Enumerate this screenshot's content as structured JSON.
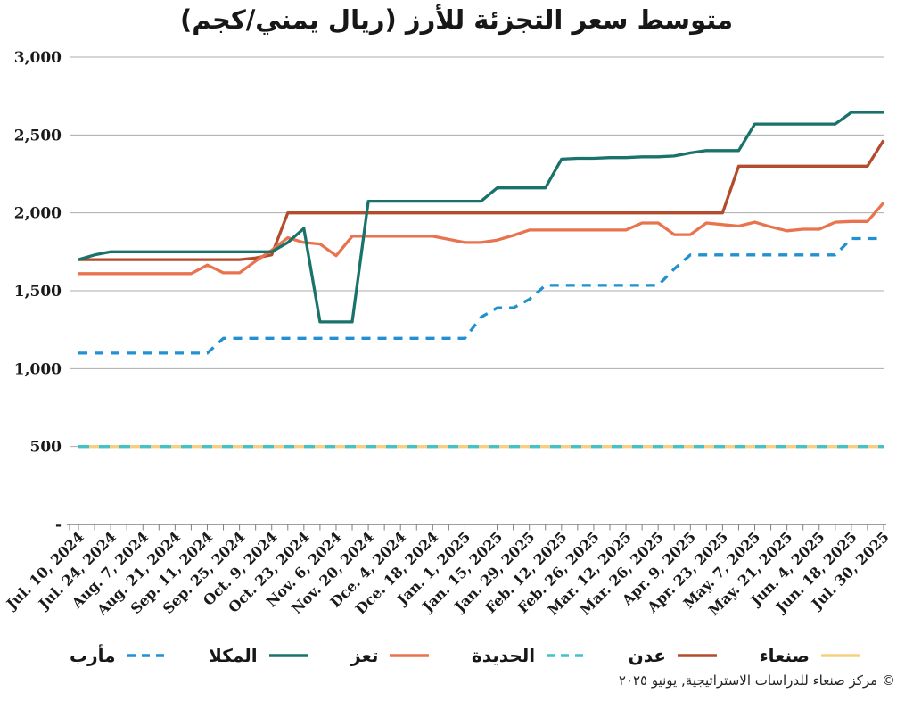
{
  "title": "متوسط سعر التجزئة للأرز (ريال يمني/كجم)",
  "footer": {
    "copyright": "© مركز صنعاء للدراسات الاستراتيجية, يونيو ٢٠٢٥"
  },
  "chart_data": {
    "type": "line",
    "title": "متوسط سعر التجزئة للأرز (ريال يمني/كجم)",
    "ylim": [
      0,
      3000
    ],
    "grid": true,
    "legend_position": "bottom",
    "x_label_rotation": -45,
    "minor_ticks_between_labels": 1,
    "y_ticks": [
      0,
      500,
      1000,
      1500,
      2000,
      2500,
      3000
    ],
    "y_tick_labels": [
      "-",
      "500",
      "1,000",
      "1,500",
      "2,000",
      "2,500",
      "3,000"
    ],
    "x_tick_labels": [
      "Jul. 10, 2024",
      "Jul. 24, 2024",
      "Aug. 7, 2024",
      "Aug. 21, 2024",
      "Sep. 11, 2024",
      "Sep. 25, 2024",
      "Oct. 9, 2024",
      "Oct. 23, 2024",
      "Nov. 6, 2024",
      "Nov. 20, 2024",
      "Dce. 4, 2024",
      "Dce. 18, 2024",
      "Jan. 1, 2025",
      "Jan. 15, 2025",
      "Jan. 29, 2025",
      "Feb. 12, 2025",
      "Feb. 26, 2025",
      "Mar. 12, 2025",
      "Mar. 26, 2025",
      "Apr. 9, 2025",
      "Apr. 23, 2025",
      "May. 7, 2025",
      "May. 21, 2025",
      "Jun. 4, 2025",
      "Jun. 18, 2025",
      "Jul. 30, 2025"
    ],
    "draw_order": [
      5,
      3,
      0,
      4,
      2,
      1
    ],
    "series": [
      {
        "key": "marib",
        "name": "مأرب",
        "color": "#2191d1",
        "dash": true,
        "values": [
          1100,
          1100,
          1100,
          1100,
          1100,
          1100,
          1100,
          1100,
          1100,
          1195,
          1195,
          1195,
          1195,
          1195,
          1195,
          1195,
          1195,
          1195,
          1195,
          1195,
          1195,
          1195,
          1195,
          1195,
          1195,
          1330,
          1390,
          1390,
          1445,
          1535,
          1535,
          1535,
          1535,
          1535,
          1535,
          1535,
          1535,
          1640,
          1730,
          1730,
          1730,
          1730,
          1730,
          1730,
          1730,
          1730,
          1730,
          1730,
          1835,
          1835,
          1835
        ]
      },
      {
        "key": "mukalla",
        "name": "المكلا",
        "color": "#19736b",
        "dash": false,
        "values": [
          1700,
          1730,
          1750,
          1750,
          1750,
          1750,
          1750,
          1750,
          1750,
          1750,
          1750,
          1750,
          1750,
          1810,
          1900,
          1300,
          1300,
          1300,
          2075,
          2075,
          2075,
          2075,
          2075,
          2075,
          2075,
          2075,
          2160,
          2160,
          2160,
          2160,
          2345,
          2350,
          2350,
          2355,
          2355,
          2360,
          2360,
          2365,
          2385,
          2400,
          2400,
          2400,
          2570,
          2570,
          2570,
          2570,
          2570,
          2570,
          2645,
          2645,
          2645
        ]
      },
      {
        "key": "taiz",
        "name": "تعز",
        "color": "#e8734d",
        "dash": false,
        "values": [
          1610,
          1610,
          1610,
          1610,
          1610,
          1610,
          1610,
          1610,
          1665,
          1615,
          1615,
          1690,
          1760,
          1840,
          1810,
          1800,
          1725,
          1850,
          1850,
          1850,
          1850,
          1850,
          1850,
          1830,
          1810,
          1810,
          1825,
          1855,
          1890,
          1890,
          1890,
          1890,
          1890,
          1890,
          1890,
          1935,
          1935,
          1860,
          1860,
          1935,
          1925,
          1915,
          1940,
          1910,
          1885,
          1895,
          1895,
          1940,
          1945,
          1945,
          2065
        ]
      },
      {
        "key": "hodeidah",
        "name": "الحديدة",
        "color": "#44c2c6",
        "dash": true,
        "values": [
          500,
          500,
          500,
          500,
          500,
          500,
          500,
          500,
          500,
          500,
          500,
          500,
          500,
          500,
          500,
          500,
          500,
          500,
          500,
          500,
          500,
          500,
          500,
          500,
          500,
          500,
          500,
          500,
          500,
          500,
          500,
          500,
          500,
          500,
          500,
          500,
          500,
          500,
          500,
          500,
          500,
          500,
          500,
          500,
          500,
          500,
          500,
          500,
          500,
          500,
          500
        ]
      },
      {
        "key": "aden",
        "name": "عدن",
        "color": "#b34b2d",
        "dash": false,
        "values": [
          1700,
          1700,
          1700,
          1700,
          1700,
          1700,
          1700,
          1700,
          1700,
          1700,
          1700,
          1710,
          1730,
          2000,
          2000,
          2000,
          2000,
          2000,
          2000,
          2000,
          2000,
          2000,
          2000,
          2000,
          2000,
          2000,
          2000,
          2000,
          2000,
          2000,
          2000,
          2000,
          2000,
          2000,
          2000,
          2000,
          2000,
          2000,
          2000,
          2000,
          2000,
          2300,
          2300,
          2300,
          2300,
          2300,
          2300,
          2300,
          2300,
          2300,
          2465
        ]
      },
      {
        "key": "sanaa",
        "name": "صنعاء",
        "color": "#f8cf80",
        "dash": false,
        "values": [
          500,
          500,
          500,
          500,
          500,
          500,
          500,
          500,
          500,
          500,
          500,
          500,
          500,
          500,
          500,
          500,
          500,
          500,
          500,
          500,
          500,
          500,
          500,
          500,
          500,
          500,
          500,
          500,
          500,
          500,
          500,
          500,
          500,
          500,
          500,
          500,
          500,
          500,
          500,
          500,
          500,
          500,
          500,
          500,
          500,
          500,
          500,
          500,
          500,
          500,
          500
        ]
      }
    ]
  }
}
